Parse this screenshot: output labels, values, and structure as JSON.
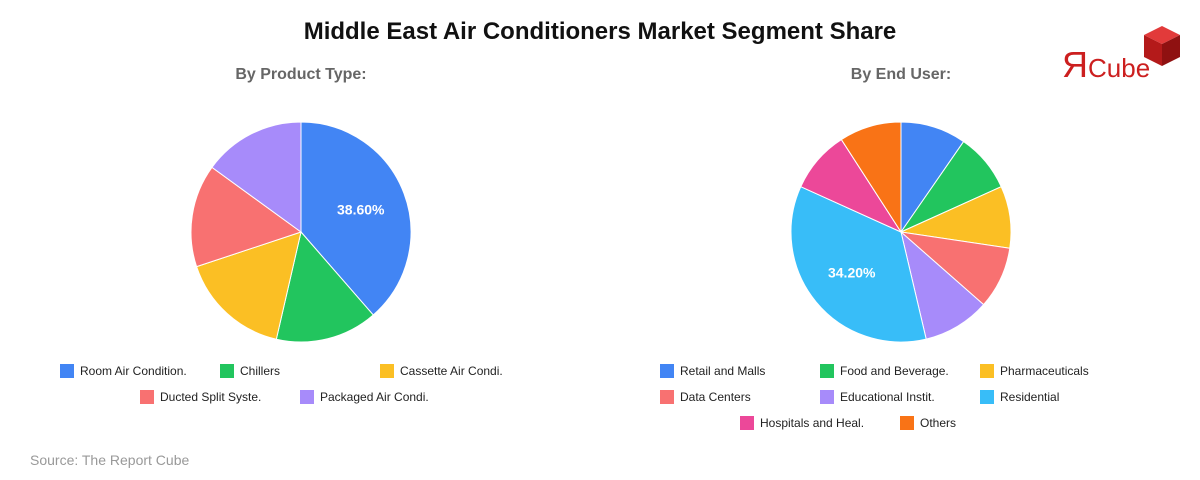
{
  "title": "Middle East Air Conditioners Market Segment Share",
  "source": "Source: The Report Cube",
  "logo": {
    "prefix": "Я",
    "text": "Cube"
  },
  "chart_data": [
    {
      "type": "pie",
      "title": "By Product Type:",
      "categories": [
        "Room Air Condition.",
        "Chillers",
        "Cassette Air Condi.",
        "Ducted Split Syste.",
        "Packaged Air Condi."
      ],
      "values": [
        38.6,
        15.0,
        16.3,
        15.1,
        15.0
      ],
      "colors": [
        "#4285f4",
        "#22c55e",
        "#fbbf24",
        "#f87171",
        "#a78bfa"
      ],
      "data_labels": [
        "38.60%",
        "",
        "",
        "",
        ""
      ],
      "legend_rows": [
        [
          0,
          1,
          2
        ],
        [
          3,
          4
        ]
      ],
      "legend_position": "bottom"
    },
    {
      "type": "pie",
      "title": "By End User:",
      "categories": [
        "Retail and Malls",
        "Food and Beverage.",
        "Pharmaceuticals",
        "Data Centers",
        "Educational Instit.",
        "Residential",
        "Hospitals and Heal.",
        "Others"
      ],
      "values": [
        9.3,
        8.3,
        8.8,
        8.8,
        9.5,
        34.2,
        8.8,
        8.8
      ],
      "colors": [
        "#4285f4",
        "#22c55e",
        "#fbbf24",
        "#f87171",
        "#a78bfa",
        "#38bdf8",
        "#ec4899",
        "#f97316"
      ],
      "data_labels": [
        "",
        "",
        "",
        "",
        "",
        "34.20%",
        "",
        ""
      ],
      "legend_rows": [
        [
          0,
          1,
          2
        ],
        [
          3,
          4,
          5
        ],
        [
          6,
          7
        ]
      ],
      "legend_position": "bottom"
    }
  ]
}
